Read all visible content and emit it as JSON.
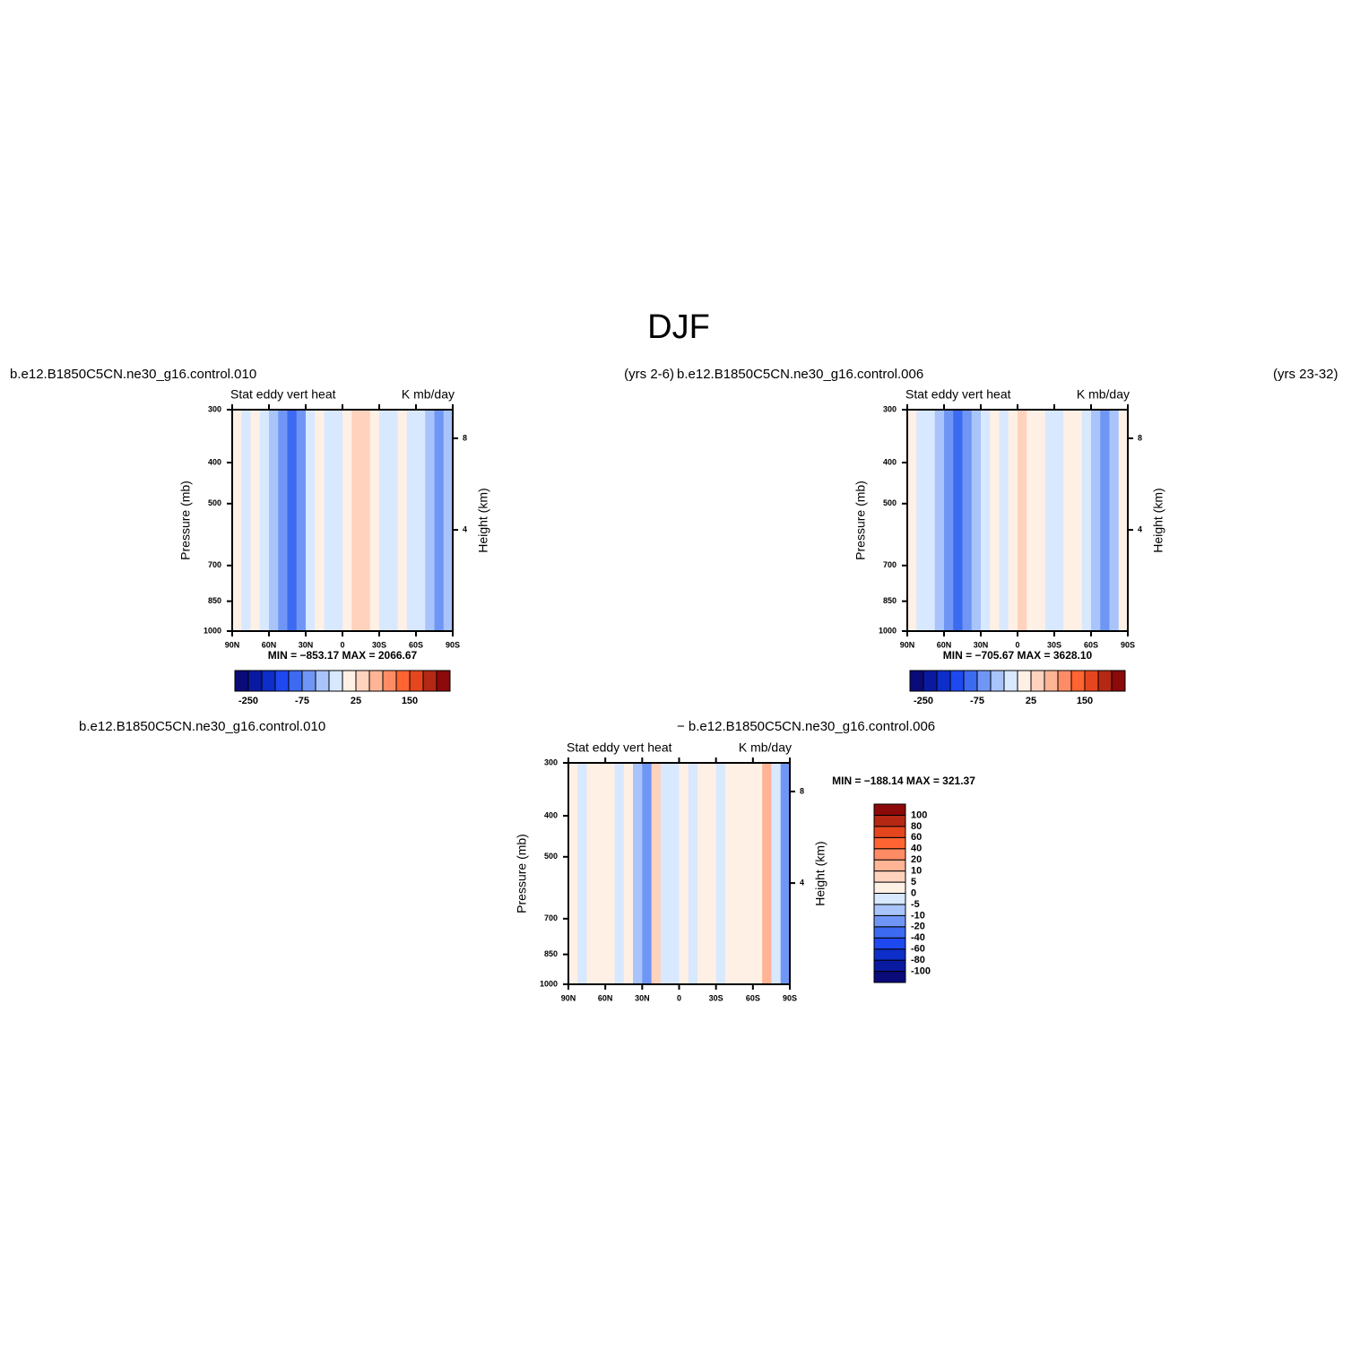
{
  "title": "DJF",
  "chart_data": [
    {
      "type": "contour",
      "left_title": "b.e12.B1850C5CN.ne30_g16.control.010",
      "right_title": "(yrs 2-6)",
      "title": "Stat eddy vert heat",
      "units": "K mb/day",
      "ylabel": "Pressure (mb)",
      "y2label": "Height (km)",
      "stats": "MIN = −853.17   MAX = 2066.67",
      "xlim": [
        90,
        -90
      ],
      "xticks": [
        {
          "value": 90,
          "label": "90N"
        },
        {
          "value": 60,
          "label": "60N"
        },
        {
          "value": 30,
          "label": "30N"
        },
        0,
        {
          "value": -30,
          "label": "30S"
        },
        {
          "value": -60,
          "label": "60S"
        },
        {
          "value": -90,
          "label": "90S"
        }
      ],
      "ylim": [
        1000,
        300
      ],
      "log_scale": "y",
      "yticks": [
        300,
        400,
        500,
        700,
        850,
        1000
      ],
      "y2lim": [
        -0.42,
        9.25
      ],
      "y2ticks": [
        4,
        8
      ],
      "x": [
        86.25,
        78.75,
        71.25,
        63.75,
        56.25,
        48.75,
        41.25,
        33.75,
        26.25,
        18.75,
        11.25,
        3.75,
        -3.75,
        -11.25,
        -18.75,
        -26.25,
        -33.75,
        -41.25,
        -48.75,
        -56.25,
        -63.75,
        -71.25,
        -78.75,
        -86.25
      ],
      "values": [
        5,
        -10,
        10,
        -10,
        -30,
        -60,
        -80,
        -60,
        -10,
        10,
        -10,
        -10,
        10,
        30,
        30,
        10,
        -10,
        -10,
        10,
        -10,
        -10,
        -30,
        -60,
        -30
      ],
      "colorbar": {
        "orientation": "horizontal",
        "levels": [
          -250,
          -200,
          -150,
          -100,
          -75,
          -50,
          -25,
          0,
          25,
          50,
          75,
          100,
          150,
          200,
          250
        ],
        "ticks": [
          -250,
          -75,
          25,
          150
        ],
        "colors": [
          "#0a0a78",
          "#0a1aa0",
          "#0d2ec8",
          "#1e48f0",
          "#3c6af0",
          "#7096f5",
          "#a8c4fa",
          "#d8e8ff",
          "#fff0e6",
          "#ffd2be",
          "#ffb496",
          "#ff8c64",
          "#ff6432",
          "#e6461e",
          "#b42814",
          "#8c0a0a"
        ]
      }
    },
    {
      "type": "contour",
      "left_title": "b.e12.B1850C5CN.ne30_g16.control.006",
      "right_title": "(yrs 23-32)",
      "title": "Stat eddy vert heat",
      "units": "K mb/day",
      "ylabel": "Pressure (mb)",
      "y2label": "Height (km)",
      "stats": "MIN = −705.67   MAX = 3628.10",
      "xlim": [
        90,
        -90
      ],
      "xticks": [
        {
          "value": 90,
          "label": "90N"
        },
        {
          "value": 60,
          "label": "60N"
        },
        {
          "value": 30,
          "label": "30N"
        },
        0,
        {
          "value": -30,
          "label": "30S"
        },
        {
          "value": -60,
          "label": "60S"
        },
        {
          "value": -90,
          "label": "90S"
        }
      ],
      "ylim": [
        1000,
        300
      ],
      "log_scale": "y",
      "yticks": [
        300,
        400,
        500,
        700,
        850,
        1000
      ],
      "y2lim": [
        -0.42,
        9.25
      ],
      "y2ticks": [
        4,
        8
      ],
      "x": [
        86.25,
        78.75,
        71.25,
        63.75,
        56.25,
        48.75,
        41.25,
        33.75,
        26.25,
        18.75,
        11.25,
        3.75,
        -3.75,
        -11.25,
        -18.75,
        -26.25,
        -33.75,
        -41.25,
        -48.75,
        -56.25,
        -63.75,
        -71.25,
        -78.75,
        -86.25
      ],
      "values": [
        10,
        -10,
        -10,
        -30,
        -60,
        -80,
        -60,
        -30,
        -10,
        10,
        -10,
        10,
        30,
        10,
        10,
        -10,
        -10,
        10,
        10,
        -10,
        -30,
        -60,
        -30,
        20
      ],
      "colorbar": {
        "orientation": "horizontal",
        "levels": [
          -250,
          -200,
          -150,
          -100,
          -75,
          -50,
          -25,
          0,
          25,
          50,
          75,
          100,
          150,
          200,
          250
        ],
        "ticks": [
          -250,
          -75,
          25,
          150
        ],
        "colors": [
          "#0a0a78",
          "#0a1aa0",
          "#0d2ec8",
          "#1e48f0",
          "#3c6af0",
          "#7096f5",
          "#a8c4fa",
          "#d8e8ff",
          "#fff0e6",
          "#ffd2be",
          "#ffb496",
          "#ff8c64",
          "#ff6432",
          "#e6461e",
          "#b42814",
          "#8c0a0a"
        ]
      }
    },
    {
      "type": "contour",
      "left_title": "b.e12.B1850C5CN.ne30_g16.control.010",
      "center_title": "− b.e12.B1850C5CN.ne30_g16.control.006",
      "title": "Stat eddy vert heat",
      "units": "K mb/day",
      "ylabel": "Pressure (mb)",
      "y2label": "Height (km)",
      "stats": "MIN = −188.14   MAX = 321.37",
      "xlim": [
        90,
        -90
      ],
      "xticks": [
        {
          "value": 90,
          "label": "90N"
        },
        {
          "value": 60,
          "label": "60N"
        },
        {
          "value": 30,
          "label": "30N"
        },
        0,
        {
          "value": -30,
          "label": "30S"
        },
        {
          "value": -60,
          "label": "60S"
        },
        {
          "value": -90,
          "label": "90S"
        }
      ],
      "ylim": [
        1000,
        300
      ],
      "log_scale": "y",
      "yticks": [
        300,
        400,
        500,
        700,
        850,
        1000
      ],
      "y2lim": [
        -0.42,
        9.25
      ],
      "y2ticks": [
        4,
        8
      ],
      "x": [
        86.25,
        78.75,
        71.25,
        63.75,
        56.25,
        48.75,
        41.25,
        33.75,
        26.25,
        18.75,
        11.25,
        3.75,
        -3.75,
        -11.25,
        -18.75,
        -26.25,
        -33.75,
        -41.25,
        -48.75,
        -56.25,
        -63.75,
        -71.25,
        -78.75,
        -86.25
      ],
      "values": [
        3,
        -3,
        3,
        3,
        3,
        -3,
        3,
        -10,
        -20,
        8,
        -3,
        -3,
        3,
        -3,
        3,
        3,
        -3,
        3,
        3,
        3,
        3,
        10,
        -3,
        -20
      ],
      "colorbar": {
        "orientation": "vertical",
        "levels": [
          -100,
          -80,
          -60,
          -40,
          -20,
          -10,
          -5,
          0,
          5,
          10,
          20,
          40,
          60,
          80,
          100
        ],
        "ticks": [
          -100,
          -80,
          -60,
          -40,
          -20,
          -10,
          -5,
          0,
          5,
          10,
          20,
          40,
          60,
          80,
          100
        ],
        "colors": [
          "#0a0a78",
          "#0a1aa0",
          "#0d2ec8",
          "#1e48f0",
          "#3c6af0",
          "#7096f5",
          "#a8c4fa",
          "#d8e8ff",
          "#fff0e6",
          "#ffd2be",
          "#ffb496",
          "#ff8c64",
          "#ff6432",
          "#e6461e",
          "#b42814",
          "#8c0a0a"
        ]
      }
    }
  ]
}
